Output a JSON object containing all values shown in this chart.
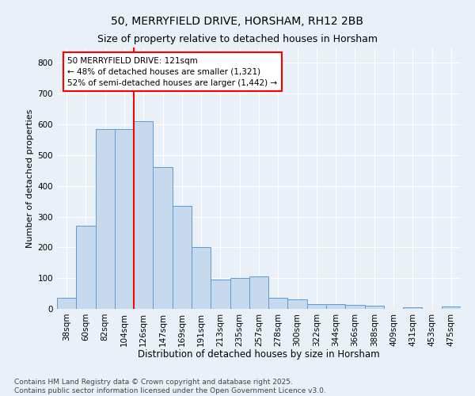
{
  "title": "50, MERRYFIELD DRIVE, HORSHAM, RH12 2BB",
  "subtitle": "Size of property relative to detached houses in Horsham",
  "xlabel": "Distribution of detached houses by size in Horsham",
  "ylabel": "Number of detached properties",
  "bar_labels": [
    "38sqm",
    "60sqm",
    "82sqm",
    "104sqm",
    "126sqm",
    "147sqm",
    "169sqm",
    "191sqm",
    "213sqm",
    "235sqm",
    "257sqm",
    "278sqm",
    "300sqm",
    "322sqm",
    "344sqm",
    "366sqm",
    "388sqm",
    "409sqm",
    "431sqm",
    "453sqm",
    "475sqm"
  ],
  "bar_values": [
    35,
    270,
    585,
    585,
    610,
    460,
    335,
    200,
    95,
    100,
    105,
    35,
    32,
    15,
    15,
    12,
    10,
    0,
    5,
    0,
    7
  ],
  "bar_color": "#c7d9ec",
  "bar_edge_color": "#5b9bd5",
  "vline_x_index": 4,
  "vline_color": "red",
  "annotation_title": "50 MERRYFIELD DRIVE: 121sqm",
  "annotation_line1": "← 48% of detached houses are smaller (1,321)",
  "annotation_line2": "52% of semi-detached houses are larger (1,442) →",
  "annotation_box_color": "white",
  "annotation_box_edge": "red",
  "ylim": [
    0,
    850
  ],
  "yticks": [
    0,
    100,
    200,
    300,
    400,
    500,
    600,
    700,
    800
  ],
  "bg_color": "#eaf0f8",
  "plot_bg_color": "#eaf0f8",
  "footer": "Contains HM Land Registry data © Crown copyright and database right 2025.\nContains public sector information licensed under the Open Government Licence v3.0.",
  "title_fontsize": 10,
  "subtitle_fontsize": 9,
  "xlabel_fontsize": 8.5,
  "ylabel_fontsize": 8,
  "tick_fontsize": 7.5,
  "annotation_fontsize": 7.5,
  "footer_fontsize": 6.5
}
